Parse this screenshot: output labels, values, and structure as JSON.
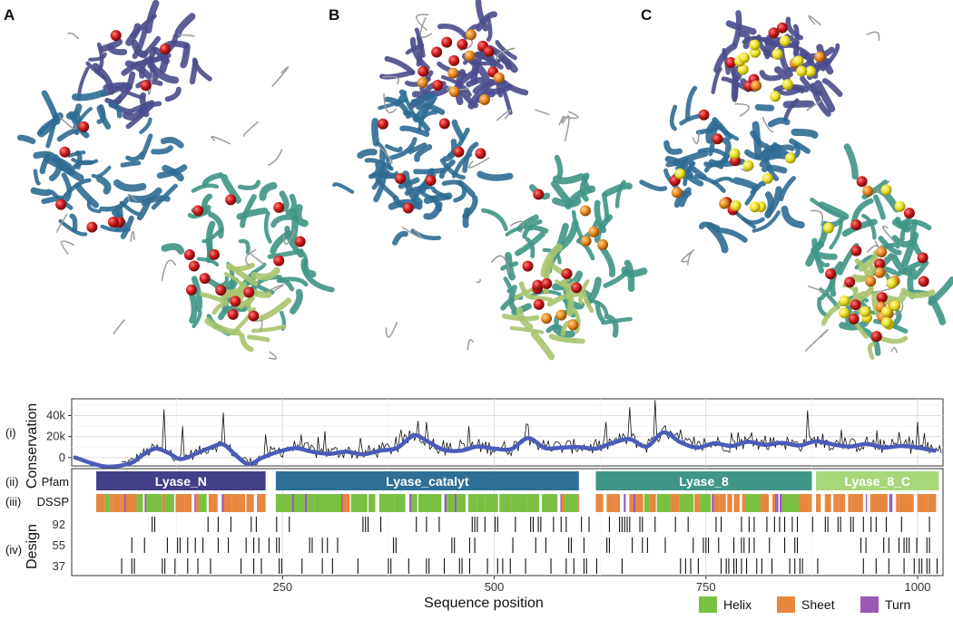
{
  "panels": [
    {
      "letter": "A"
    },
    {
      "letter": "B"
    },
    {
      "letter": "C"
    }
  ],
  "track_labels": {
    "conservation_roman": "(i)",
    "pfam_roman": "(ii)",
    "dssp_roman": "(iii)",
    "design_roman": "(iv)",
    "pfam": "Pfam",
    "dssp": "DSSP",
    "design_rows": [
      "92",
      "55",
      "37"
    ]
  },
  "chart_data": {
    "type": "line",
    "xlabel": "Sequence position",
    "xlim": [
      1,
      1030
    ],
    "x_ticks": [
      250,
      500,
      750,
      1000
    ],
    "conservation": {
      "ylabel": "Conservation",
      "ylim": [
        -8000,
        56000
      ],
      "y_ticks": [
        0,
        20000,
        40000
      ],
      "y_tick_labels": [
        "0",
        "20k",
        "40k"
      ],
      "smooth_x": [
        5,
        40,
        70,
        85,
        100,
        115,
        130,
        150,
        165,
        180,
        195,
        210,
        225,
        245,
        265,
        285,
        305,
        325,
        345,
        365,
        385,
        405,
        420,
        440,
        460,
        480,
        500,
        520,
        540,
        560,
        580,
        600,
        620,
        640,
        660,
        680,
        700,
        720,
        740,
        760,
        780,
        800,
        820,
        840,
        860,
        880,
        900,
        920,
        940,
        960,
        980,
        1000,
        1020
      ],
      "smooth_y": [
        0,
        -8500,
        -5500,
        2500,
        8500,
        4500,
        -1500,
        4500,
        9500,
        12500,
        2000,
        -6500,
        -500,
        5500,
        9000,
        5500,
        3500,
        5500,
        3000,
        6500,
        9000,
        21000,
        16000,
        7500,
        6500,
        10500,
        8500,
        8000,
        18500,
        9000,
        9500,
        10000,
        8500,
        14000,
        17500,
        10500,
        24000,
        14500,
        9500,
        13500,
        11000,
        15000,
        12000,
        14000,
        11500,
        15500,
        12500,
        10500,
        13000,
        9500,
        11000,
        9500,
        6500
      ],
      "raw_peaks": [
        [
          110,
          46000
        ],
        [
          132,
          30000
        ],
        [
          180,
          43000
        ],
        [
          208,
          -2000
        ],
        [
          230,
          22000
        ],
        [
          300,
          25000
        ],
        [
          410,
          35000
        ],
        [
          470,
          30000
        ],
        [
          540,
          31000
        ],
        [
          660,
          48000
        ],
        [
          690,
          55000
        ],
        [
          870,
          45000
        ],
        [
          1000,
          34000
        ]
      ]
    },
    "pfam_domains": [
      {
        "name": "Lyase_N",
        "start": 30,
        "end": 230,
        "color": "#433f89"
      },
      {
        "name": "Lyase_catalyt",
        "start": 242,
        "end": 600,
        "color": "#2e6f97"
      },
      {
        "name": "Lyase_8",
        "start": 620,
        "end": 875,
        "color": "#3f9586"
      },
      {
        "name": "Lyase_8_C",
        "start": 880,
        "end": 1025,
        "color": "#a8d77a"
      }
    ],
    "dssp_legend": [
      {
        "name": "Helix",
        "color": "#7ac143"
      },
      {
        "name": "Sheet",
        "color": "#e8873f"
      },
      {
        "name": "Turn",
        "color": "#9b59b6"
      }
    ]
  }
}
